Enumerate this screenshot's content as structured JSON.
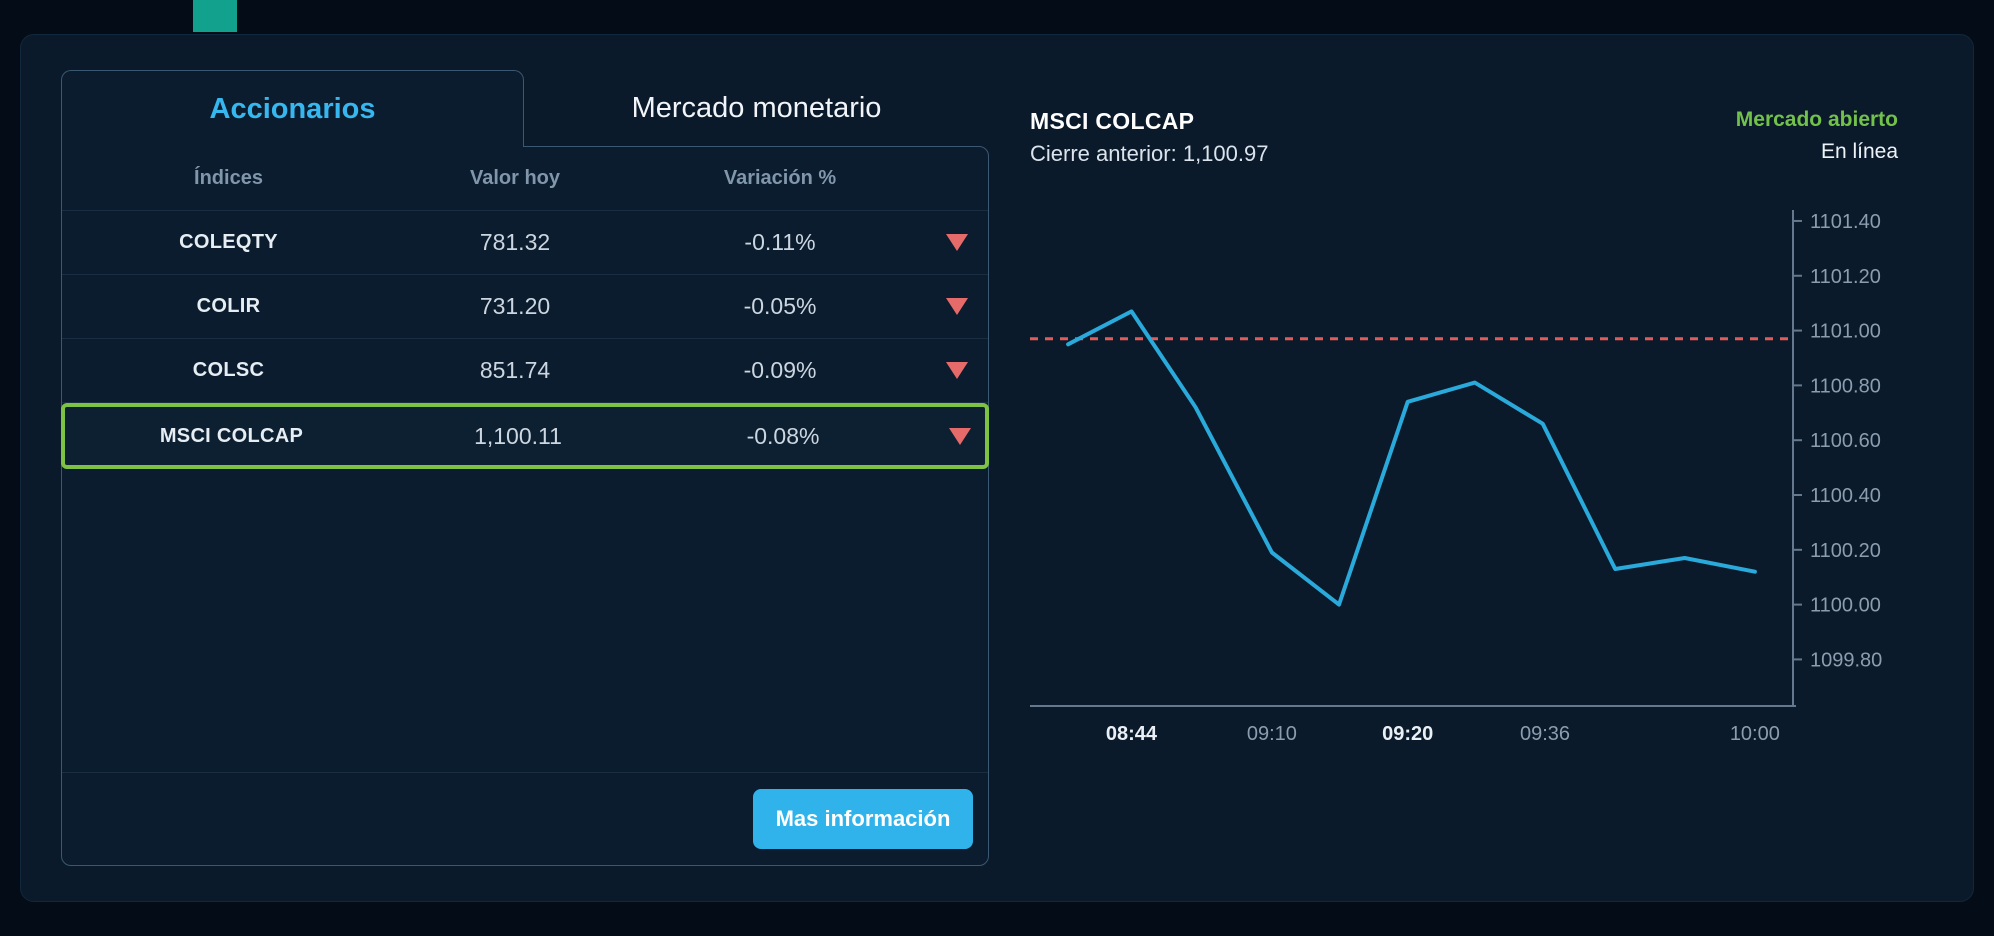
{
  "colors": {
    "accent_cyan": "#2fb3ea",
    "highlight_green": "#7dc242",
    "negative_red": "#e56a6a",
    "status_green": "#72c14a",
    "reference_red": "#e15b5b",
    "line_blue": "#2aa9db",
    "axis": "#64798d",
    "tick_text": "#8b9dae",
    "x_label_bold": "#e9eff5"
  },
  "tabs": [
    {
      "label": "Accionarios",
      "active": true
    },
    {
      "label": "Mercado monetario",
      "active": false
    }
  ],
  "table": {
    "headers": [
      "Índices",
      "Valor hoy",
      "Variación %"
    ],
    "rows": [
      {
        "index": "COLEQTY",
        "value": "781.32",
        "variation": "-0.11%",
        "direction": "down",
        "highlighted": false
      },
      {
        "index": "COLIR",
        "value": "731.20",
        "variation": "-0.05%",
        "direction": "down",
        "highlighted": false
      },
      {
        "index": "COLSC",
        "value": "851.74",
        "variation": "-0.09%",
        "direction": "down",
        "highlighted": false
      },
      {
        "index": "MSCI COLCAP",
        "value": "1,100.11",
        "variation": "-0.08%",
        "direction": "down",
        "highlighted": true
      }
    ]
  },
  "actions": {
    "more_info_label": "Mas información"
  },
  "chart_header": {
    "title": "MSCI COLCAP",
    "subtitle": "Cierre anterior: 1,100.97"
  },
  "status": {
    "market": "Mercado abierto",
    "connection": "En línea"
  },
  "chart_data": {
    "type": "line",
    "title": "MSCI COLCAP",
    "reference_line": 1100.97,
    "reference_label": "Cierre anterior",
    "ylim": [
      1099.63,
      1101.44
    ],
    "y_axis_side": "right",
    "grid": false,
    "y_ticks": [
      "1101.40",
      "1101.20",
      "1101.00",
      "1100.80",
      "1100.60",
      "1100.40",
      "1100.20",
      "1100.00",
      "1099.80"
    ],
    "x_tick_labels": [
      {
        "label": "08:44",
        "pos": 0.133,
        "bold": true
      },
      {
        "label": "09:10",
        "pos": 0.317,
        "bold": false
      },
      {
        "label": "09:20",
        "pos": 0.495,
        "bold": true
      },
      {
        "label": "09:36",
        "pos": 0.675,
        "bold": false
      },
      {
        "label": "10:00",
        "pos": 0.95,
        "bold": false
      }
    ],
    "series": [
      {
        "name": "MSCI COLCAP",
        "color": "#2aa9db",
        "points": [
          {
            "x": 0.05,
            "v": 1100.95
          },
          {
            "x": 0.133,
            "v": 1101.07
          },
          {
            "x": 0.217,
            "v": 1100.72
          },
          {
            "x": 0.317,
            "v": 1100.19
          },
          {
            "x": 0.405,
            "v": 1100.0
          },
          {
            "x": 0.495,
            "v": 1100.74
          },
          {
            "x": 0.583,
            "v": 1100.81
          },
          {
            "x": 0.672,
            "v": 1100.66
          },
          {
            "x": 0.767,
            "v": 1100.13
          },
          {
            "x": 0.858,
            "v": 1100.17
          },
          {
            "x": 0.95,
            "v": 1100.12
          }
        ]
      }
    ]
  }
}
